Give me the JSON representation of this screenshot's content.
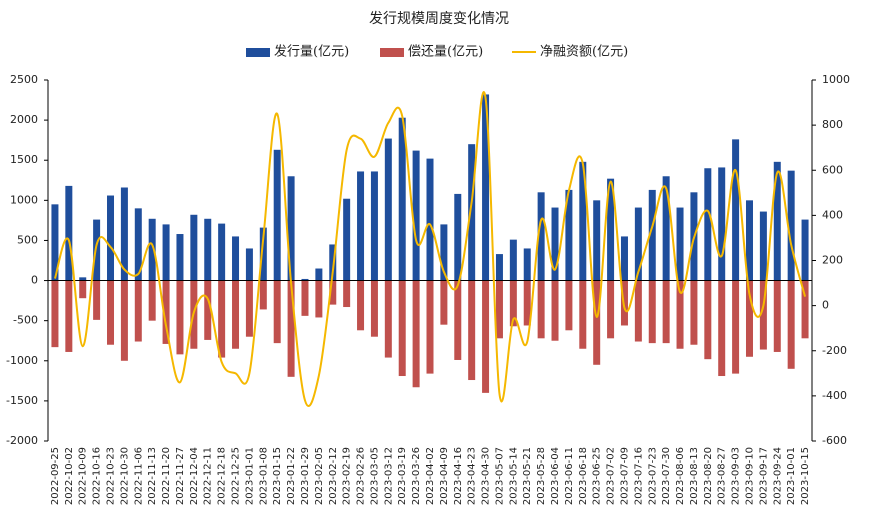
{
  "chart_data": {
    "type": "bar_line",
    "title": "发行规模周度变化情况",
    "categories": [
      "2022-09-25",
      "2022-10-02",
      "2022-10-09",
      "2022-10-16",
      "2022-10-23",
      "2022-10-30",
      "2022-11-06",
      "2022-11-13",
      "2022-11-20",
      "2022-11-27",
      "2022-12-04",
      "2022-12-11",
      "2022-12-18",
      "2022-12-25",
      "2023-01-01",
      "2023-01-08",
      "2023-01-15",
      "2023-01-22",
      "2023-01-29",
      "2023-02-05",
      "2023-02-12",
      "2023-02-19",
      "2023-02-26",
      "2023-03-05",
      "2023-03-12",
      "2023-03-19",
      "2023-03-26",
      "2023-04-02",
      "2023-04-09",
      "2023-04-16",
      "2023-04-23",
      "2023-04-30",
      "2023-05-07",
      "2023-05-14",
      "2023-05-21",
      "2023-05-28",
      "2023-06-04",
      "2023-06-11",
      "2023-06-18",
      "2023-06-25",
      "2023-07-02",
      "2023-07-09",
      "2023-07-16",
      "2023-07-23",
      "2023-07-30",
      "2023-08-06",
      "2023-08-13",
      "2023-08-20",
      "2023-08-27",
      "2023-09-03",
      "2023-09-10",
      "2023-09-17",
      "2023-09-24",
      "2023-10-01",
      "2023-10-15"
    ],
    "series": [
      {
        "name": "发行量(亿元)",
        "color": "#1f4e9c",
        "type": "bar",
        "values": [
          950,
          1180,
          40,
          760,
          1060,
          1160,
          900,
          770,
          700,
          580,
          820,
          770,
          710,
          550,
          400,
          660,
          1630,
          1300,
          20,
          150,
          450,
          1020,
          1360,
          1360,
          1770,
          2030,
          1620,
          1520,
          700,
          1080,
          1700,
          2320,
          330,
          510,
          400,
          1100,
          910,
          1130,
          1480,
          1000,
          1270,
          550,
          910,
          1130,
          1300,
          910,
          1100,
          1400,
          1410,
          1760,
          1000,
          860,
          1480,
          1370,
          760
        ]
      },
      {
        "name": "偿还量(亿元)",
        "color": "#c0504d",
        "type": "bar",
        "values": [
          -830,
          -890,
          -220,
          -490,
          -800,
          -1000,
          -760,
          -500,
          -790,
          -920,
          -850,
          -740,
          -960,
          -850,
          -700,
          -360,
          -780,
          -1200,
          -440,
          -460,
          -300,
          -330,
          -620,
          -700,
          -960,
          -1190,
          -1330,
          -1160,
          -550,
          -990,
          -1240,
          -1400,
          -720,
          -570,
          -560,
          -720,
          -750,
          -620,
          -850,
          -1050,
          -720,
          -560,
          -760,
          -780,
          -780,
          -850,
          -800,
          -980,
          -1190,
          -1160,
          -950,
          -860,
          -890,
          -1100,
          -720
        ]
      },
      {
        "name": "净融资额(亿元)",
        "color": "#f5b800",
        "type": "line",
        "axis": "y2",
        "values": [
          120,
          290,
          -180,
          270,
          260,
          160,
          140,
          270,
          -90,
          -340,
          -30,
          30,
          -250,
          -300,
          -300,
          300,
          850,
          100,
          -420,
          -310,
          150,
          690,
          740,
          660,
          810,
          840,
          290,
          360,
          150,
          90,
          460,
          920,
          -390,
          -60,
          -160,
          380,
          160,
          510,
          630,
          -50,
          550,
          -10,
          150,
          350,
          520,
          60,
          300,
          420,
          220,
          600,
          50,
          0,
          590,
          270,
          40
        ]
      }
    ],
    "ylim": [
      -2000,
      2500
    ],
    "yticks": [
      -2000,
      -1500,
      -1000,
      -500,
      0,
      500,
      1000,
      1500,
      2000,
      2500
    ],
    "y2lim": [
      -600,
      1000
    ],
    "y2ticks": [
      -600,
      -400,
      -200,
      0,
      200,
      400,
      600,
      800,
      1000
    ]
  }
}
